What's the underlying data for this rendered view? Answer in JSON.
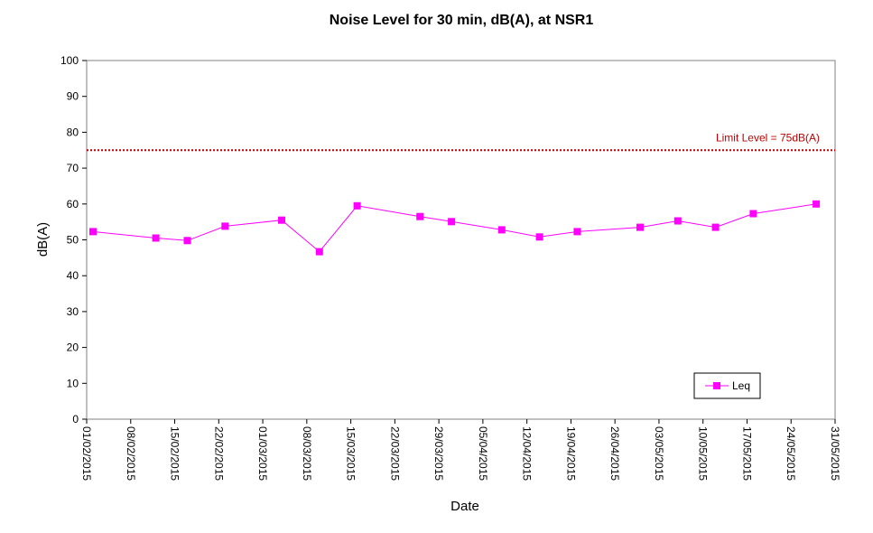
{
  "chart_data": {
    "type": "line",
    "title": "Noise Level for 30 min, dB(A), at NSR1",
    "xlabel": "Date",
    "ylabel": "dB(A)",
    "ylim": [
      0,
      100
    ],
    "yticks": [
      "0",
      "10",
      "20",
      "30",
      "40",
      "50",
      "60",
      "70",
      "80",
      "90",
      "100"
    ],
    "xlim": [
      "2015-02-01",
      "2015-05-31"
    ],
    "xticks": [
      "01/02/2015",
      "08/02/2015",
      "15/02/2015",
      "22/02/2015",
      "01/03/2015",
      "08/03/2015",
      "15/03/2015",
      "22/03/2015",
      "29/03/2015",
      "05/04/2015",
      "12/04/2015",
      "19/04/2015",
      "26/04/2015",
      "03/05/2015",
      "10/05/2015",
      "17/05/2015",
      "24/05/2015",
      "31/05/2015"
    ],
    "grid": false,
    "legend_position": "bottom-right",
    "series": [
      {
        "name": "Leq",
        "color": "#FF00FF",
        "marker": "square",
        "x": [
          "2015-02-02",
          "2015-02-12",
          "2015-02-17",
          "2015-02-23",
          "2015-03-04",
          "2015-03-10",
          "2015-03-16",
          "2015-03-26",
          "2015-03-31",
          "2015-04-08",
          "2015-04-14",
          "2015-04-20",
          "2015-04-30",
          "2015-05-06",
          "2015-05-12",
          "2015-05-18",
          "2015-05-28"
        ],
        "values": [
          52.3,
          50.5,
          49.8,
          53.8,
          55.5,
          46.7,
          59.5,
          56.5,
          55.1,
          52.8,
          50.8,
          52.3,
          53.5,
          55.3,
          53.5,
          57.3,
          60.0
        ]
      }
    ],
    "limit_line": {
      "value": 75,
      "label": "Limit Level  = 75dB(A)",
      "color": "#C00000"
    }
  }
}
